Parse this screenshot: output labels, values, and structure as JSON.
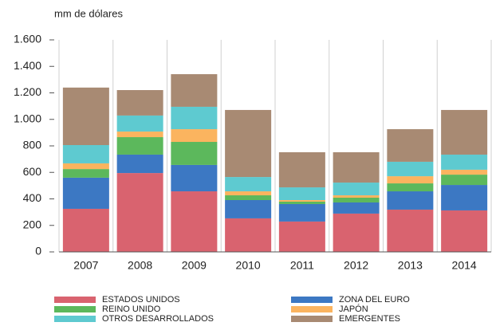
{
  "chart_data": {
    "type": "stacked_bar",
    "y_axis_label": "mm de dólares",
    "categories": [
      "2007",
      "2008",
      "2009",
      "2010",
      "2011",
      "2012",
      "2013",
      "2014"
    ],
    "series": [
      {
        "name": "ESTADOS UNIDOS",
        "color": "#d9636f",
        "values": [
          325,
          595,
          457,
          253,
          229,
          289,
          319,
          313
        ]
      },
      {
        "name": "ZONA DEL EURO",
        "color": "#3c78c3",
        "values": [
          235,
          139,
          199,
          138,
          132,
          84,
          138,
          192
        ]
      },
      {
        "name": "REINO UNIDO",
        "color": "#5cb85c",
        "values": [
          65,
          132,
          174,
          36,
          18,
          36,
          60,
          78
        ]
      },
      {
        "name": "JAPÓN",
        "color": "#fbb45f",
        "values": [
          43,
          42,
          96,
          30,
          12,
          18,
          54,
          37
        ]
      },
      {
        "name": "OTROS DESARROLLADOS",
        "color": "#5ecad0",
        "values": [
          138,
          121,
          169,
          108,
          96,
          96,
          109,
          114
        ]
      },
      {
        "name": "EMERGENTES",
        "color": "#a88a73",
        "values": [
          434,
          192,
          246,
          506,
          265,
          229,
          246,
          337
        ]
      }
    ],
    "ylim": [
      0,
      1600
    ],
    "yticks": [
      0,
      200,
      400,
      600,
      800,
      {
        "value": 1000,
        "label": "1.000"
      },
      {
        "value": 1200,
        "label": "1.200"
      },
      {
        "value": 1400,
        "label": "1.400"
      },
      {
        "value": 1600,
        "label": "1.600"
      }
    ]
  }
}
